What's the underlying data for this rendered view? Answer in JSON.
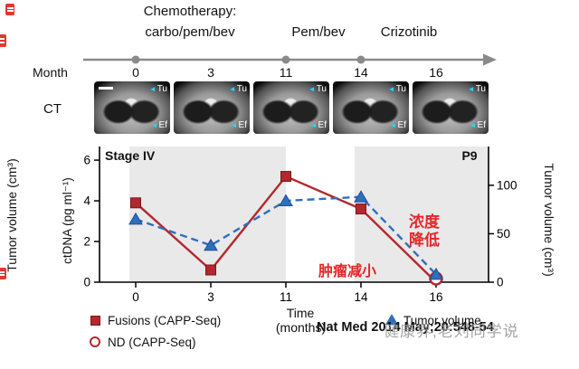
{
  "timeline": {
    "title": "Chemotherapy:",
    "phases": [
      "carbo/pem/bev",
      "Pem/bev",
      "Crizotinib"
    ],
    "month_label": "Month",
    "months": [
      "0",
      "3",
      "11",
      "14",
      "16"
    ]
  },
  "ct": {
    "row_label": "CT",
    "tumor_marker": "Tu",
    "effusion_marker": "Ef"
  },
  "icons": {
    "cyan_arrow": "◄"
  },
  "labels": {
    "left_outer_axis": "Tumor volume (cm³)",
    "time_line1": "Time",
    "time_line2": "(months)"
  },
  "annotations_cn": {
    "tumor_shrink": "肿瘤减小",
    "conc_drop": "浓度降低"
  },
  "legend": {
    "fusions": "Fusions (CAPP-Seq)",
    "nd": "ND (CAPP-Seq)",
    "tumor_volume": "Tumor volume"
  },
  "footer": {
    "citation": "Nat Med 2014 May;20:548-54",
    "watermark": "健康界,老刘同学说"
  },
  "colors": {
    "series_red": "#b3282d",
    "series_blue": "#2e6fbe",
    "annotation_red": "#e6252a",
    "shaded_band": "#e9e9e9",
    "timeline_gray": "#8a8a8a"
  },
  "chart_data": {
    "type": "line",
    "x": [
      0,
      3,
      11,
      14,
      16
    ],
    "x_label": "Time (months)",
    "left_axis": {
      "label": "ctDNA (pg ml⁻¹)",
      "ticks": [
        0,
        2,
        4,
        6
      ],
      "max": 6.67
    },
    "right_axis": {
      "label": "Tumor volume (cm³)",
      "ticks": [
        0,
        50,
        100
      ],
      "max": 140
    },
    "shaded_month_spans": [
      [
        0,
        11
      ],
      [
        14,
        16
      ]
    ],
    "annotations": [
      "Stage IV",
      "P9"
    ],
    "series": [
      {
        "name": "Fusions (CAPP-Seq)",
        "axis": "left",
        "color": "#b3282d",
        "edge": "#7e1519",
        "marker": "square",
        "line": "solid",
        "values": [
          3.9,
          0.6,
          5.2,
          3.6,
          0
        ],
        "marker_indices": [
          0,
          1,
          2,
          3
        ]
      },
      {
        "name": "ND (CAPP-Seq)",
        "axis": "left",
        "color": "#b3282d",
        "edge": "#b3282d",
        "marker": "open-circle",
        "line": "none",
        "values": [
          null,
          null,
          null,
          null,
          0
        ]
      },
      {
        "name": "Tumor volume",
        "axis": "right",
        "color": "#2e6fbe",
        "edge": "#1d4f93",
        "marker": "triangle",
        "line": "dashed",
        "values": [
          65,
          38,
          84,
          88,
          8
        ]
      }
    ]
  }
}
